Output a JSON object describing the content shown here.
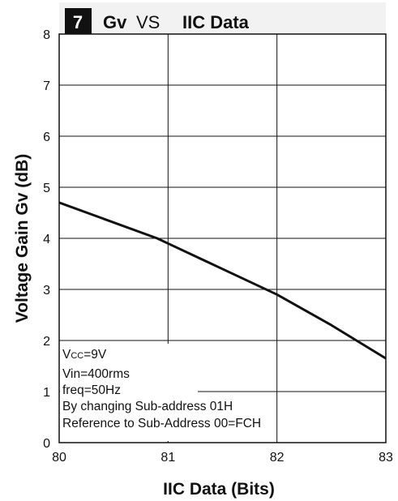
{
  "chart_data": {
    "type": "line",
    "title": {
      "number": "7",
      "part1": "Gv",
      "part2": "VS",
      "part3": "IIC Data"
    },
    "xlabel": "IIC Data (Bits)",
    "ylabel": "Voltage Gain Gv (dB)",
    "xlim": [
      80,
      83
    ],
    "ylim": [
      0,
      8
    ],
    "x_ticks": [
      80,
      81,
      82,
      83
    ],
    "x_tick_labels": [
      "80",
      "81",
      "82",
      "83"
    ],
    "y_ticks": [
      0,
      1,
      2,
      3,
      4,
      5,
      6,
      7,
      8
    ],
    "y_tick_labels": [
      "0",
      "1",
      "2",
      "3",
      "4",
      "5",
      "6",
      "7",
      "8"
    ],
    "grid": true,
    "series": [
      {
        "x": [
          80,
          80.9,
          81,
          81.5,
          82,
          82.5,
          83
        ],
        "y": [
          4.7,
          4.0,
          3.9,
          3.4,
          2.9,
          2.3,
          1.65
        ]
      }
    ],
    "annotation": {
      "vcc_main": "V",
      "vcc_sub": "CC",
      "vcc_value": "=9V",
      "lines": [
        "Vin=400rms",
        "freq=50Hz",
        "By changing Sub-address 01H",
        "Reference to Sub-Address 00=FCH"
      ]
    },
    "colors": {
      "line": "#111111",
      "grid": "#111111",
      "title_badge": "#111111",
      "title_bar": "#f2f2f2"
    }
  }
}
